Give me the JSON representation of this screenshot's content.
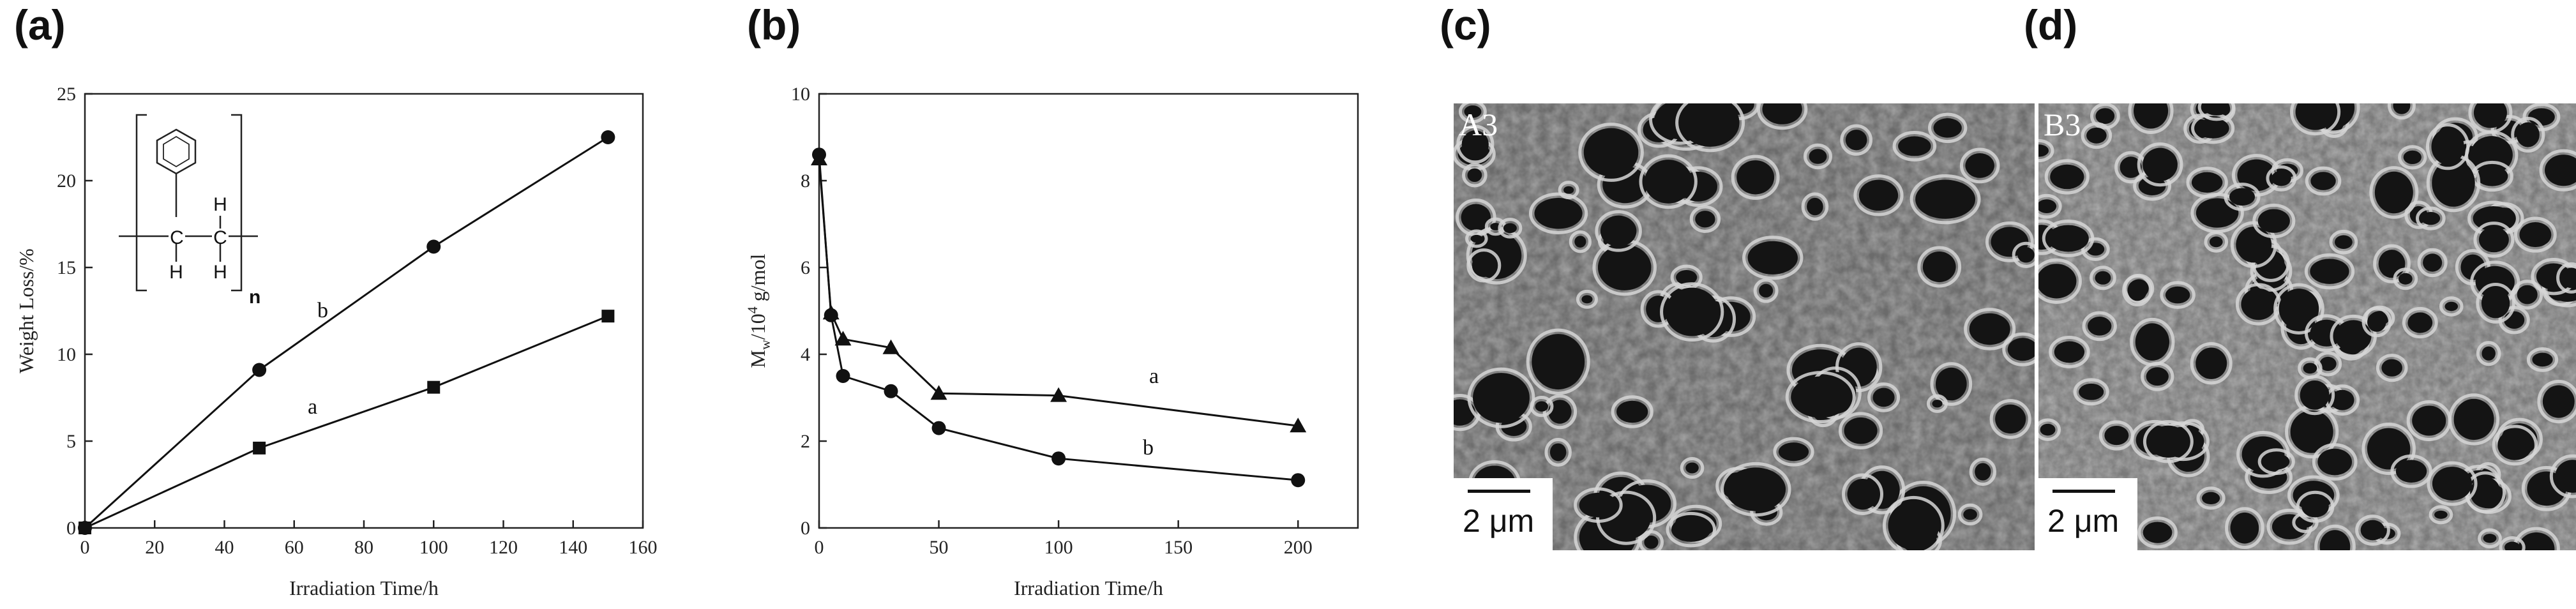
{
  "panels": {
    "a": {
      "label": "(a)"
    },
    "b": {
      "label": "(b)"
    },
    "c": {
      "label": "(c)",
      "sample": "A3",
      "scale": "2 μm"
    },
    "d": {
      "label": "(d)",
      "sample": "B3",
      "scale": "2 μm"
    }
  },
  "chart_data": [
    {
      "type": "line",
      "xlabel": "Irradiation Time/h",
      "ylabel": "Weight Loss/%",
      "xlim": [
        0,
        160
      ],
      "ylim": [
        0,
        25
      ],
      "xticks": [
        0,
        20,
        40,
        60,
        80,
        100,
        120,
        140,
        160
      ],
      "yticks": [
        0,
        5,
        10,
        15,
        20,
        25
      ],
      "series": [
        {
          "name": "a",
          "marker": "square",
          "x": [
            0,
            50,
            100,
            150
          ],
          "y": [
            0,
            4.6,
            8.1,
            12.2
          ]
        },
        {
          "name": "b",
          "marker": "circle",
          "x": [
            0,
            50,
            100,
            150
          ],
          "y": [
            0,
            9.1,
            16.2,
            22.5
          ]
        }
      ],
      "inset": {
        "structure": "polystyrene repeat unit",
        "atoms": [
          "C",
          "C",
          "H",
          "H",
          "H"
        ],
        "subscript": "n"
      }
    },
    {
      "type": "line",
      "xlabel": "Irradiation Time/h",
      "ylabel_main": "M",
      "ylabel_sub": "w",
      "ylabel_rest": "/10",
      "ylabel_sup": "4",
      "ylabel_unit": " g/mol",
      "xlim": [
        0,
        225
      ],
      "ylim": [
        0,
        10
      ],
      "xticks": [
        0,
        50,
        100,
        150,
        200
      ],
      "yticks": [
        0,
        2,
        4,
        6,
        8,
        10
      ],
      "series": [
        {
          "name": "a",
          "marker": "triangle",
          "x": [
            0,
            5,
            10,
            30,
            50,
            100,
            200
          ],
          "y": [
            8.5,
            4.95,
            4.35,
            4.15,
            3.1,
            3.05,
            2.35
          ]
        },
        {
          "name": "b",
          "marker": "circle",
          "x": [
            0,
            5,
            10,
            30,
            50,
            100,
            200
          ],
          "y": [
            8.6,
            4.9,
            3.5,
            3.15,
            2.3,
            1.6,
            1.1
          ]
        }
      ]
    }
  ]
}
